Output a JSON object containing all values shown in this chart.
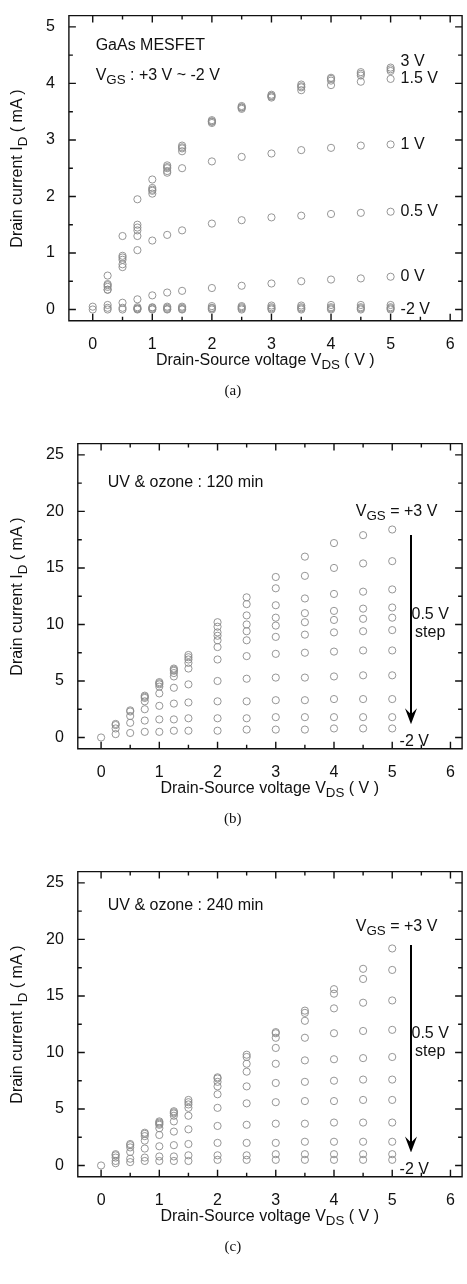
{
  "chart_data": [
    {
      "type": "scatter",
      "marker": "circle",
      "xlabel": "Drain-Source voltage  V$_{DS}$ ( V )",
      "ylabel": "Drain current  I$_{D}$ ( mA )",
      "annotations": [
        "GaAs MESFET",
        "V$_{GS}$ : +3 V ~ -2 V",
        "(a)"
      ],
      "xlim": [
        -0.4,
        6.2
      ],
      "ylim": [
        -0.2,
        5.2
      ],
      "xticks": [
        0,
        {
          "value": 0.5,
          "label": null
        },
        1,
        {
          "value": 1.5,
          "label": null
        },
        2,
        {
          "value": 2.5,
          "label": null
        },
        3,
        {
          "value": 3.5,
          "label": null
        },
        4,
        {
          "value": 4.5,
          "label": null
        },
        5,
        {
          "value": 5.5,
          "label": null
        },
        6
      ],
      "yticks": [
        0,
        {
          "value": 0.5,
          "label": null
        },
        1,
        {
          "value": 1.5,
          "label": null
        },
        2,
        {
          "value": 2.5,
          "label": null
        },
        3,
        {
          "value": 3.5,
          "label": null
        },
        4,
        {
          "value": 4.5,
          "label": null
        },
        5
      ],
      "x": [
        0,
        0.25,
        0.5,
        0.75,
        1,
        1.25,
        1.5,
        2,
        2.5,
        3,
        3.5,
        4,
        4.5,
        5
      ],
      "series": [
        {
          "name": "3 V",
          "color": "#8a8a8a",
          "values": [
            0.05,
            0.45,
            0.95,
            1.5,
            2.15,
            2.55,
            2.9,
            3.35,
            3.6,
            3.8,
            3.98,
            4.1,
            4.2,
            4.28
          ]
        },
        {
          "color": "#8a8a8a",
          "values": [
            null,
            0.43,
            0.92,
            1.45,
            2.12,
            2.52,
            2.87,
            3.33,
            3.58,
            3.78,
            3.95,
            4.08,
            4.17,
            4.25
          ]
        },
        {
          "color": "#8a8a8a",
          "values": [
            null,
            0.4,
            0.88,
            1.4,
            2.1,
            2.5,
            2.85,
            3.32,
            3.57,
            3.77,
            3.93,
            4.05,
            4.14,
            4.22
          ]
        },
        {
          "name": "1.5 V",
          "color": "#8a8a8a",
          "values": [
            null,
            0.35,
            0.8,
            1.3,
            2.05,
            2.45,
            2.8,
            3.3,
            3.55,
            3.75,
            3.88,
            3.97,
            4.03,
            4.08
          ]
        },
        {
          "name": "1 V",
          "color": "#8a8a8a",
          "values": [
            null,
            0.6,
            1.3,
            1.95,
            2.3,
            2.42,
            2.5,
            2.62,
            2.7,
            2.76,
            2.82,
            2.86,
            2.9,
            2.92
          ]
        },
        {
          "name": "0.5 V",
          "color": "#8a8a8a",
          "values": [
            null,
            0.35,
            0.75,
            1.05,
            1.22,
            1.32,
            1.4,
            1.52,
            1.58,
            1.63,
            1.66,
            1.69,
            1.71,
            1.73
          ]
        },
        {
          "name": "0 V",
          "color": "#8a8a8a",
          "values": [
            null,
            0.08,
            0.12,
            0.18,
            0.25,
            0.3,
            0.33,
            0.38,
            0.42,
            0.46,
            0.5,
            0.53,
            0.55,
            0.58
          ]
        },
        {
          "color": "#8a8a8a",
          "values": [
            null,
            0.03,
            0.03,
            0.04,
            0.04,
            0.05,
            0.05,
            0.06,
            0.06,
            0.07,
            0.07,
            0.08,
            0.08,
            0.08
          ]
        },
        {
          "color": "#8a8a8a",
          "values": [
            null,
            null,
            null,
            0.02,
            0.03,
            0.03,
            0.03,
            0.03,
            0.04,
            0.04,
            0.04,
            0.04,
            0.04,
            0.04
          ]
        },
        {
          "color": "#8a8a8a",
          "values": [
            null,
            null,
            null,
            0.01,
            0.01,
            0.01,
            0.01,
            0.02,
            0.02,
            0.02,
            0.02,
            0.02,
            0.02,
            0.02
          ]
        },
        {
          "name": "-2 V",
          "color": "#8a8a8a",
          "values": [
            0,
            0,
            0,
            0,
            0,
            0,
            0,
            0,
            0,
            0,
            0,
            0,
            0,
            0
          ]
        }
      ]
    },
    {
      "type": "scatter",
      "marker": "circle",
      "xlabel": "Drain-Source voltage  V$_{DS}$ ( V )",
      "ylabel": "Drain current I$_{D}$ ( mA )",
      "annotations": [
        "UV & ozone : 120 min",
        "V$_{GS}$ = +3 V",
        "0.5 V step",
        "-2 V",
        "(b)"
      ],
      "xlim": [
        -0.4,
        6.2
      ],
      "ylim": [
        -1,
        26
      ],
      "xticks": [
        0,
        {
          "value": 0.5,
          "label": null
        },
        1,
        {
          "value": 1.5,
          "label": null
        },
        2,
        {
          "value": 2.5,
          "label": null
        },
        3,
        {
          "value": 3.5,
          "label": null
        },
        4,
        {
          "value": 4.5,
          "label": null
        },
        5,
        {
          "value": 5.5,
          "label": null
        },
        6
      ],
      "yticks": [
        0,
        {
          "value": 2.5,
          "label": null
        },
        5,
        {
          "value": 7.5,
          "label": null
        },
        10,
        {
          "value": 12.5,
          "label": null
        },
        15,
        {
          "value": 17.5,
          "label": null
        },
        20,
        {
          "value": 22.5,
          "label": null
        },
        25
      ],
      "x": [
        0,
        0.25,
        0.5,
        0.75,
        1,
        1.25,
        1.5,
        2,
        2.5,
        3,
        3.5,
        4,
        4.5,
        5
      ],
      "series": [
        {
          "color": "#8a8a8a",
          "values": [
            0,
            1.2,
            2.4,
            3.7,
            4.9,
            6.1,
            7.3,
            10.2,
            12.4,
            14.2,
            16,
            17.2,
            17.9,
            18.4
          ]
        },
        {
          "color": "#8a8a8a",
          "values": [
            null,
            null,
            null,
            null,
            null,
            null,
            null,
            9.8,
            11.8,
            13.2,
            14.3,
            15,
            15.4,
            15.6
          ]
        },
        {
          "color": "#8a8a8a",
          "values": [
            null,
            null,
            null,
            null,
            null,
            null,
            null,
            9.3,
            10.8,
            11.7,
            12.3,
            12.7,
            12.9,
            13.1
          ]
        },
        {
          "color": "#8a8a8a",
          "values": [
            null,
            null,
            null,
            null,
            null,
            6,
            7.1,
            9,
            10,
            10.6,
            11,
            11.2,
            11.4,
            11.5
          ]
        },
        {
          "color": "#8a8a8a",
          "values": [
            null,
            null,
            null,
            null,
            4.8,
            5.9,
            6.9,
            8.6,
            9.4,
            9.9,
            10.2,
            10.4,
            10.5,
            10.6
          ]
        },
        {
          "color": "#8a8a8a",
          "values": [
            null,
            null,
            null,
            3.6,
            4.7,
            5.7,
            6.6,
            8,
            8.6,
            8.9,
            9.1,
            9.3,
            9.4,
            9.5
          ]
        },
        {
          "color": "#8a8a8a",
          "values": [
            null,
            null,
            null,
            3.5,
            4.5,
            5.4,
            6.1,
            6.9,
            7.2,
            7.4,
            7.5,
            7.6,
            7.7,
            7.7
          ]
        },
        {
          "color": "#8a8a8a",
          "values": [
            null,
            null,
            2.3,
            3.2,
            3.9,
            4.4,
            4.7,
            5,
            5.2,
            5.3,
            5.3,
            5.4,
            5.5,
            5.5
          ]
        },
        {
          "color": "#8a8a8a",
          "values": [
            null,
            1.1,
            1.9,
            2.5,
            2.8,
            3,
            3.1,
            3.2,
            3.2,
            3.3,
            3.3,
            3.4,
            3.4,
            3.4
          ]
        },
        {
          "color": "#8a8a8a",
          "values": [
            null,
            0.8,
            1.3,
            1.5,
            1.6,
            1.6,
            1.7,
            1.7,
            1.7,
            1.8,
            1.8,
            1.8,
            1.8,
            1.8
          ]
        },
        {
          "color": "#8a8a8a",
          "values": [
            null,
            0.3,
            0.4,
            0.5,
            0.5,
            0.6,
            0.6,
            0.6,
            0.7,
            0.7,
            0.7,
            0.8,
            0.8,
            0.8
          ]
        }
      ]
    },
    {
      "type": "scatter",
      "marker": "circle",
      "xlabel": "Drain-Source voltage  V$_{DS}$ ( V )",
      "ylabel": "Drain current I$_{D}$ ( mA )",
      "annotations": [
        "UV & ozone : 240 min",
        "V$_{GS}$ = +3 V",
        "0.5 V step",
        "-2 V",
        "(c)"
      ],
      "xlim": [
        -0.4,
        6.2
      ],
      "ylim": [
        -1,
        26
      ],
      "xticks": [
        0,
        {
          "value": 0.5,
          "label": null
        },
        1,
        {
          "value": 1.5,
          "label": null
        },
        2,
        {
          "value": 2.5,
          "label": null
        },
        3,
        {
          "value": 3.5,
          "label": null
        },
        4,
        {
          "value": 4.5,
          "label": null
        },
        5,
        {
          "value": 5.5,
          "label": null
        },
        6
      ],
      "yticks": [
        0,
        {
          "value": 2.5,
          "label": null
        },
        5,
        {
          "value": 7.5,
          "label": null
        },
        10,
        {
          "value": 12.5,
          "label": null
        },
        15,
        {
          "value": 17.5,
          "label": null
        },
        20,
        {
          "value": 22.5,
          "label": null
        },
        25
      ],
      "x": [
        0,
        0.25,
        0.5,
        0.75,
        1,
        1.25,
        1.5,
        2,
        2.5,
        3,
        3.5,
        4,
        4.5,
        5
      ],
      "series": [
        {
          "color": "#8a8a8a",
          "values": [
            0,
            1,
            1.9,
            2.9,
            3.9,
            4.8,
            5.8,
            7.8,
            9.8,
            11.8,
            13.7,
            15.6,
            17.4,
            19.2
          ]
        },
        {
          "color": "#8a8a8a",
          "values": [
            null,
            null,
            null,
            null,
            null,
            null,
            null,
            null,
            null,
            11.7,
            13.5,
            15.2,
            16.5,
            17.3
          ]
        },
        {
          "color": "#8a8a8a",
          "values": [
            null,
            null,
            null,
            null,
            null,
            null,
            null,
            7.7,
            9.6,
            11.3,
            12.8,
            13.9,
            14.4,
            14.6
          ]
        },
        {
          "color": "#8a8a8a",
          "values": [
            null,
            null,
            null,
            null,
            3.8,
            4.7,
            5.6,
            7.4,
            9,
            10.4,
            11.3,
            11.7,
            11.9,
            12
          ]
        },
        {
          "color": "#8a8a8a",
          "values": [
            null,
            null,
            null,
            2.8,
            3.7,
            4.6,
            5.4,
            7,
            8.3,
            9,
            9.3,
            9.4,
            9.5,
            9.6
          ]
        },
        {
          "color": "#8a8a8a",
          "values": [
            null,
            null,
            null,
            null,
            3.6,
            4.4,
            5.1,
            6.3,
            7,
            7.3,
            7.4,
            7.5,
            7.6,
            7.6
          ]
        },
        {
          "color": "#8a8a8a",
          "values": [
            null,
            null,
            1.8,
            2.6,
            3.3,
            3.9,
            4.4,
            5.1,
            5.5,
            5.6,
            5.7,
            5.7,
            5.8,
            5.8
          ]
        },
        {
          "color": "#8a8a8a",
          "values": [
            null,
            0.9,
            1.6,
            2.2,
            2.7,
            3,
            3.2,
            3.5,
            3.6,
            3.7,
            3.7,
            3.8,
            3.8,
            3.8
          ]
        },
        {
          "color": "#8a8a8a",
          "values": [
            null,
            0.7,
            1.2,
            1.5,
            1.7,
            1.8,
            1.9,
            2,
            2,
            2,
            2.1,
            2.1,
            2.1,
            2.1
          ]
        },
        {
          "color": "#8a8a8a",
          "values": [
            null,
            0.4,
            0.6,
            0.7,
            0.8,
            0.8,
            0.9,
            0.9,
            0.9,
            1,
            1,
            1,
            1,
            1
          ]
        },
        {
          "color": "#8a8a8a",
          "values": [
            null,
            0.2,
            0.3,
            0.4,
            0.4,
            0.4,
            0.4,
            0.5,
            0.5,
            0.5,
            0.5,
            0.5,
            0.5,
            0.5
          ]
        }
      ]
    }
  ]
}
